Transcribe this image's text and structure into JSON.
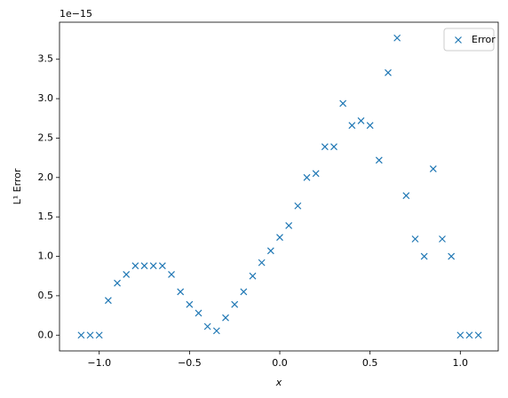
{
  "chart_data": {
    "type": "scatter",
    "xlabel": "x",
    "ylabel": "L¹ Error",
    "y_offset_text": "1e−15",
    "x": [
      -1.1,
      -1.05,
      -1.0,
      -0.95,
      -0.9,
      -0.85,
      -0.8,
      -0.75,
      -0.7,
      -0.65,
      -0.6,
      -0.55,
      -0.5,
      -0.45,
      -0.4,
      -0.35,
      -0.3,
      -0.25,
      -0.2,
      -0.15,
      -0.1,
      -0.05,
      0.0,
      0.05,
      0.1,
      0.15,
      0.2,
      0.25,
      0.3,
      0.35,
      0.4,
      0.45,
      0.5,
      0.55,
      0.6,
      0.65,
      0.7,
      0.75,
      0.8,
      0.85,
      0.9,
      0.95,
      1.0,
      1.05,
      1.1
    ],
    "series": [
      {
        "name": "Error",
        "color": "#1f77b4",
        "marker": "x",
        "values": [
          0,
          0,
          0,
          0.44,
          0.66,
          0.77,
          0.88,
          0.88,
          0.88,
          0.88,
          0.77,
          0.55,
          0.39,
          0.28,
          0.11,
          0.055,
          0.22,
          0.39,
          0.55,
          0.75,
          0.92,
          1.07,
          1.24,
          1.39,
          1.64,
          2.0,
          2.05,
          2.39,
          2.39,
          2.94,
          2.66,
          2.72,
          2.66,
          2.22,
          3.33,
          3.77,
          1.77,
          1.22,
          1.0,
          2.11,
          1.22,
          1.0,
          0,
          0,
          0
        ]
      }
    ],
    "xlim": [
      -1.22,
      1.21
    ],
    "xticks": [
      {
        "value": -1.0,
        "label": "−1.0"
      },
      {
        "value": -0.5,
        "label": "−0.5"
      },
      {
        "value": 0,
        "label": "0.0"
      },
      0.5,
      {
        "value": 1,
        "label": "1.0"
      }
    ],
    "ylim": [
      -0.2,
      3.97
    ],
    "yticks": [
      {
        "value": 0,
        "label": "0.0"
      },
      0.5,
      {
        "value": 1,
        "label": "1.0"
      },
      1.5,
      {
        "value": 2,
        "label": "2.0"
      },
      2.5,
      {
        "value": 3,
        "label": "3.0"
      },
      3.5
    ],
    "grid": false,
    "legend": "upper right"
  }
}
